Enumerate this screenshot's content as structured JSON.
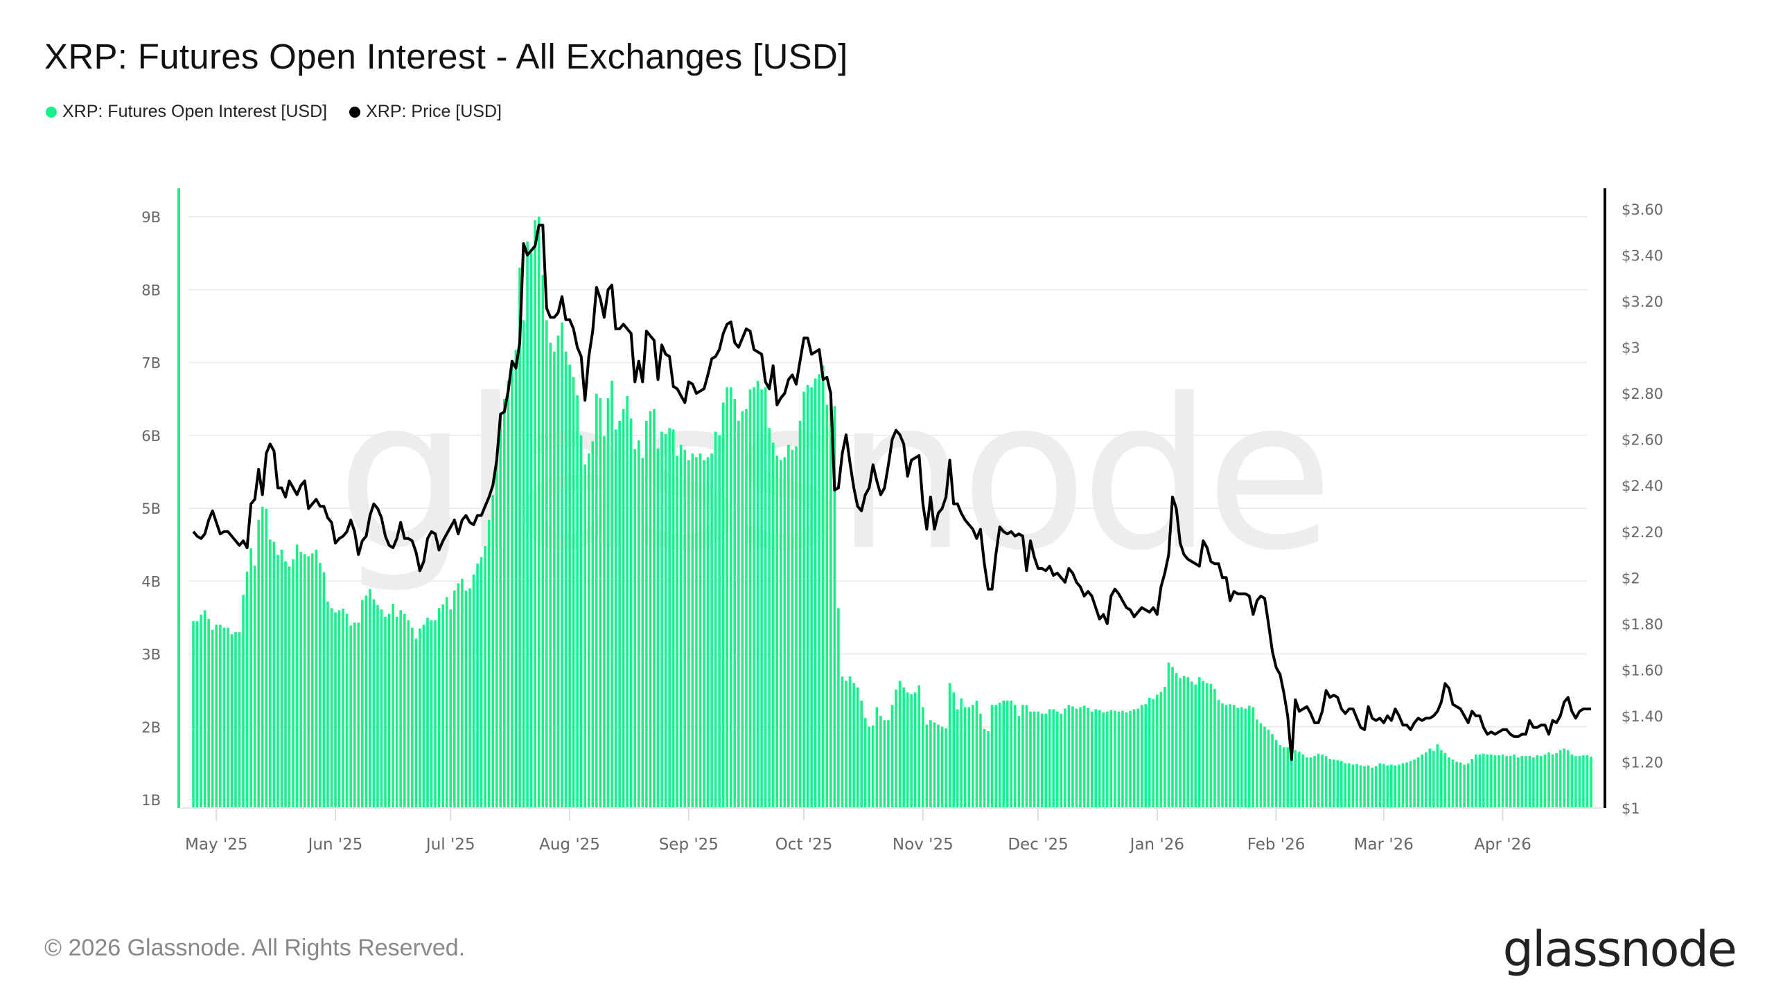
{
  "title": "XRP: Futures Open Interest - All Exchanges [USD]",
  "legend": [
    {
      "label": "XRP: Futures Open Interest [USD]",
      "color": "#19f08a"
    },
    {
      "label": "XRP: Price [USD]",
      "color": "#000000"
    }
  ],
  "footer": "© 2026 Glassnode. All Rights Reserved.",
  "logo": "glassnode",
  "watermark": "glassnode",
  "chart_data": {
    "type": "bar+line",
    "title": "XRP: Futures Open Interest - All Exchanges [USD]",
    "x_ticks": [
      "May '25",
      "Jun '25",
      "Jul '25",
      "Aug '25",
      "Sep '25",
      "Oct '25",
      "Nov '25",
      "Dec '25",
      "Jan '26",
      "Feb '26",
      "Mar '26",
      "Apr '26"
    ],
    "x_tick_dates": [
      "2025-05-01",
      "2025-06-01",
      "2025-07-01",
      "2025-08-01",
      "2025-09-01",
      "2025-10-01",
      "2025-11-01",
      "2025-12-01",
      "2026-01-01",
      "2026-02-01",
      "2026-03-01",
      "2026-04-01"
    ],
    "y_left": {
      "ticks": [
        "1B",
        "2B",
        "3B",
        "4B",
        "5B",
        "6B",
        "7B",
        "8B",
        "9B"
      ],
      "tick_values": [
        1,
        2,
        3,
        4,
        5,
        6,
        7,
        8,
        9
      ],
      "unit": "billion USD",
      "range": [
        0.89,
        9.2
      ]
    },
    "y_right": {
      "ticks": [
        "$1",
        "$1.20",
        "$1.40",
        "$1.60",
        "$1.80",
        "$2",
        "$2.20",
        "$2.40",
        "$2.60",
        "$2.80",
        "$3",
        "$3.20",
        "$3.40",
        "$3.60"
      ],
      "tick_values": [
        1,
        1.2,
        1.4,
        1.6,
        1.8,
        2,
        2.2,
        2.4,
        2.6,
        2.8,
        3,
        3.2,
        3.4,
        3.6
      ],
      "range": [
        1,
        3.62
      ]
    },
    "grid": true,
    "legend_position": "top-left",
    "series": [
      {
        "name": "XRP: Futures Open Interest [USD]",
        "type": "bar",
        "axis": "left",
        "color": "#19f08a"
      },
      {
        "name": "XRP: Price [USD]",
        "type": "line",
        "axis": "right",
        "color": "#000000"
      }
    ],
    "daily": [
      {
        "month": "2025-04",
        "from_day": 25,
        "oi": [
          3.45,
          3.45,
          3.54,
          3.6,
          3.48,
          3.33
        ],
        "price": [
          2.2,
          2.18,
          2.17,
          2.19,
          2.25,
          2.29
        ]
      },
      {
        "month": "2025-05",
        "from_day": 1,
        "oi": [
          3.4,
          3.4,
          3.36,
          3.36,
          3.27,
          3.3,
          3.3,
          3.81,
          4.13,
          4.45,
          4.21,
          4.84,
          5.02,
          4.99,
          4.57,
          4.54,
          4.36,
          4.43,
          4.27,
          4.2,
          4.3,
          4.5,
          4.4,
          4.37,
          4.34,
          4.38,
          4.43,
          4.25,
          4.12,
          3.72,
          3.63
        ],
        "price": [
          2.24,
          2.19,
          2.2,
          2.2,
          2.18,
          2.16,
          2.14,
          2.16,
          2.13,
          2.32,
          2.34,
          2.47,
          2.36,
          2.54,
          2.58,
          2.55,
          2.39,
          2.39,
          2.35,
          2.42,
          2.39,
          2.36,
          2.4,
          2.42,
          2.3,
          2.32,
          2.34,
          2.31,
          2.31,
          2.26,
          2.24
        ]
      },
      {
        "month": "2025-06",
        "from_day": 1,
        "oi": [
          3.57,
          3.6,
          3.62,
          3.55,
          3.39,
          3.43,
          3.43,
          3.74,
          3.8,
          3.89,
          3.75,
          3.67,
          3.61,
          3.51,
          3.55,
          3.69,
          3.51,
          3.6,
          3.55,
          3.46,
          3.36,
          3.21,
          3.35,
          3.4,
          3.5,
          3.46,
          3.46,
          3.63,
          3.68,
          3.78
        ],
        "price": [
          2.15,
          2.17,
          2.18,
          2.2,
          2.25,
          2.2,
          2.1,
          2.16,
          2.18,
          2.27,
          2.32,
          2.3,
          2.26,
          2.18,
          2.14,
          2.13,
          2.17,
          2.24,
          2.17,
          2.17,
          2.16,
          2.11,
          2.03,
          2.07,
          2.17,
          2.2,
          2.19,
          2.12,
          2.16,
          2.19
        ]
      },
      {
        "month": "2025-07",
        "from_day": 1,
        "oi": [
          3.61,
          3.87,
          3.97,
          4.03,
          3.87,
          3.9,
          4.09,
          4.24,
          4.33,
          4.48,
          4.84,
          5.18,
          5.7,
          6.22,
          6.5,
          6.75,
          6.97,
          7.17,
          8.3,
          7.58,
          8.66,
          8.5,
          8.95,
          9.0,
          8.2,
          7.58,
          7.27,
          7.15,
          7.37,
          7.55,
          7.15
        ],
        "price": [
          2.22,
          2.25,
          2.19,
          2.25,
          2.27,
          2.24,
          2.23,
          2.27,
          2.27,
          2.31,
          2.35,
          2.4,
          2.51,
          2.71,
          2.72,
          2.81,
          2.94,
          2.91,
          3.02,
          3.45,
          3.4,
          3.42,
          3.44,
          3.53,
          3.53,
          3.17,
          3.13,
          3.13,
          3.15,
          3.22,
          3.12
        ]
      },
      {
        "month": "2025-08",
        "from_day": 1,
        "oi": [
          6.97,
          6.8,
          6.55,
          6.0,
          5.6,
          5.75,
          5.92,
          6.57,
          6.51,
          5.99,
          6.51,
          6.75,
          6.08,
          6.2,
          6.36,
          6.54,
          6.23,
          5.81,
          5.93,
          5.69,
          6.2,
          6.33,
          6.36,
          5.82,
          6.05,
          6.02,
          6.1,
          6.08,
          5.72,
          5.87,
          5.8
        ],
        "price": [
          3.12,
          3.08,
          3.0,
          2.96,
          2.77,
          2.96,
          3.07,
          3.26,
          3.21,
          3.13,
          3.25,
          3.27,
          3.08,
          3.08,
          3.1,
          3.08,
          3.06,
          2.85,
          2.94,
          2.85,
          3.07,
          3.05,
          3.03,
          2.86,
          3.01,
          2.97,
          2.96,
          2.83,
          2.82,
          2.79,
          2.76
        ]
      },
      {
        "month": "2025-09",
        "from_day": 1,
        "oi": [
          5.66,
          5.75,
          5.7,
          5.75,
          5.66,
          5.7,
          5.75,
          6.05,
          6.0,
          6.45,
          6.66,
          6.66,
          6.5,
          6.2,
          6.33,
          6.36,
          6.63,
          6.66,
          6.75,
          6.63,
          6.66,
          6.1,
          5.9,
          5.72,
          5.66,
          5.7,
          5.87,
          5.8,
          5.85,
          6.2
        ],
        "price": [
          2.85,
          2.84,
          2.8,
          2.81,
          2.82,
          2.88,
          2.95,
          2.96,
          2.99,
          3.06,
          3.1,
          3.11,
          3.02,
          3.0,
          3.04,
          3.08,
          3.07,
          2.99,
          2.98,
          2.97,
          2.85,
          2.82,
          2.92,
          2.75,
          2.78,
          2.8,
          2.86,
          2.88,
          2.84,
          2.94
        ]
      },
      {
        "month": "2025-10",
        "from_day": 1,
        "oi": [
          6.6,
          6.69,
          6.66,
          6.78,
          6.84,
          6.96,
          6.42,
          6.45,
          6.4,
          3.63,
          2.69,
          2.63,
          2.69,
          2.6,
          2.54,
          2.36,
          2.12,
          2.0,
          2.02,
          2.27,
          2.15,
          2.09,
          2.09,
          2.3,
          2.51,
          2.63,
          2.54,
          2.47,
          2.45,
          2.47,
          2.57
        ],
        "price": [
          3.04,
          3.04,
          2.97,
          2.98,
          2.99,
          2.86,
          2.87,
          2.8,
          2.38,
          2.39,
          2.54,
          2.62,
          2.5,
          2.39,
          2.31,
          2.29,
          2.36,
          2.39,
          2.49,
          2.42,
          2.36,
          2.39,
          2.49,
          2.6,
          2.64,
          2.62,
          2.58,
          2.44,
          2.51,
          2.52,
          2.53
        ]
      },
      {
        "month": "2025-11",
        "from_day": 1,
        "oi": [
          2.27,
          2.03,
          2.09,
          2.06,
          2.03,
          2.0,
          1.98,
          2.6,
          2.47,
          2.24,
          2.39,
          2.27,
          2.27,
          2.3,
          2.36,
          2.18,
          1.97,
          1.94,
          2.3,
          2.3,
          2.33,
          2.36,
          2.36,
          2.36,
          2.3,
          2.15,
          2.3,
          2.3,
          2.21,
          2.21
        ],
        "price": [
          2.32,
          2.21,
          2.35,
          2.21,
          2.28,
          2.3,
          2.35,
          2.51,
          2.32,
          2.32,
          2.28,
          2.25,
          2.23,
          2.21,
          2.17,
          2.21,
          2.06,
          1.95,
          1.95,
          2.1,
          2.22,
          2.2,
          2.19,
          2.2,
          2.18,
          2.19,
          2.18,
          2.03,
          2.16,
          2.09
        ]
      },
      {
        "month": "2025-12",
        "from_day": 1,
        "oi": [
          2.21,
          2.18,
          2.18,
          2.24,
          2.24,
          2.21,
          2.18,
          2.25,
          2.3,
          2.28,
          2.25,
          2.27,
          2.29,
          2.26,
          2.21,
          2.24,
          2.23,
          2.2,
          2.21,
          2.23,
          2.22,
          2.21,
          2.22,
          2.2,
          2.22,
          2.24,
          2.25,
          2.3,
          2.31,
          2.4,
          2.38
        ],
        "price": [
          2.04,
          2.04,
          2.03,
          2.05,
          2.01,
          2.02,
          2.0,
          1.98,
          2.04,
          2.02,
          1.98,
          1.96,
          1.92,
          1.94,
          1.92,
          1.87,
          1.82,
          1.84,
          1.8,
          1.92,
          1.95,
          1.93,
          1.9,
          1.87,
          1.86,
          1.83,
          1.85,
          1.87,
          1.86,
          1.85,
          1.87
        ]
      },
      {
        "month": "2026-01",
        "from_day": 1,
        "oi": [
          2.44,
          2.48,
          2.55,
          2.88,
          2.82,
          2.74,
          2.67,
          2.7,
          2.68,
          2.62,
          2.58,
          2.68,
          2.63,
          2.6,
          2.59,
          2.52,
          2.37,
          2.32,
          2.3,
          2.31,
          2.3,
          2.26,
          2.27,
          2.25,
          2.29,
          2.27,
          2.1,
          2.05,
          2.0,
          1.96,
          1.9
        ],
        "price": [
          1.84,
          1.96,
          2.02,
          2.1,
          2.35,
          2.3,
          2.15,
          2.1,
          2.08,
          2.07,
          2.06,
          2.05,
          2.16,
          2.13,
          2.07,
          2.06,
          2.06,
          2.0,
          2.0,
          1.9,
          1.94,
          1.93,
          1.93,
          1.93,
          1.92,
          1.84,
          1.9,
          1.92,
          1.91,
          1.8,
          1.68
        ]
      },
      {
        "month": "2026-02",
        "from_day": 1,
        "oi": [
          1.82,
          1.75,
          1.72,
          1.72,
          1.7,
          1.68,
          1.66,
          1.62,
          1.58,
          1.58,
          1.6,
          1.63,
          1.62,
          1.6,
          1.56,
          1.55,
          1.54,
          1.53,
          1.5,
          1.5,
          1.48,
          1.49,
          1.47,
          1.46,
          1.47,
          1.44,
          1.46,
          1.5
        ],
        "price": [
          1.61,
          1.58,
          1.5,
          1.4,
          1.21,
          1.47,
          1.42,
          1.43,
          1.44,
          1.41,
          1.37,
          1.37,
          1.42,
          1.51,
          1.48,
          1.49,
          1.48,
          1.43,
          1.41,
          1.43,
          1.43,
          1.39,
          1.35,
          1.34,
          1.44,
          1.39,
          1.38,
          1.39
        ]
      },
      {
        "month": "2026-03",
        "from_day": 1,
        "oi": [
          1.49,
          1.47,
          1.48,
          1.47,
          1.48,
          1.5,
          1.51,
          1.53,
          1.55,
          1.58,
          1.62,
          1.65,
          1.7,
          1.67,
          1.76,
          1.68,
          1.64,
          1.58,
          1.55,
          1.52,
          1.51,
          1.48,
          1.5,
          1.56,
          1.62,
          1.62,
          1.63,
          1.62,
          1.62,
          1.61,
          1.61
        ],
        "price": [
          1.37,
          1.4,
          1.38,
          1.43,
          1.4,
          1.36,
          1.36,
          1.34,
          1.37,
          1.39,
          1.38,
          1.39,
          1.39,
          1.4,
          1.42,
          1.46,
          1.54,
          1.52,
          1.45,
          1.44,
          1.43,
          1.4,
          1.37,
          1.42,
          1.4,
          1.4,
          1.35,
          1.32,
          1.33,
          1.32,
          1.33
        ]
      },
      {
        "month": "2026-04",
        "from_day": 1,
        "oi": [
          1.62,
          1.6,
          1.6,
          1.62,
          1.58,
          1.6,
          1.6,
          1.6,
          1.58,
          1.61,
          1.6,
          1.62,
          1.65,
          1.62,
          1.64,
          1.68,
          1.7,
          1.68,
          1.62,
          1.6,
          1.6,
          1.61,
          1.61,
          1.59
        ],
        "price": [
          1.34,
          1.34,
          1.32,
          1.31,
          1.31,
          1.32,
          1.32,
          1.38,
          1.35,
          1.35,
          1.36,
          1.36,
          1.32,
          1.38,
          1.37,
          1.4,
          1.46,
          1.48,
          1.42,
          1.39,
          1.42,
          1.43,
          1.43,
          1.43
        ]
      }
    ]
  }
}
